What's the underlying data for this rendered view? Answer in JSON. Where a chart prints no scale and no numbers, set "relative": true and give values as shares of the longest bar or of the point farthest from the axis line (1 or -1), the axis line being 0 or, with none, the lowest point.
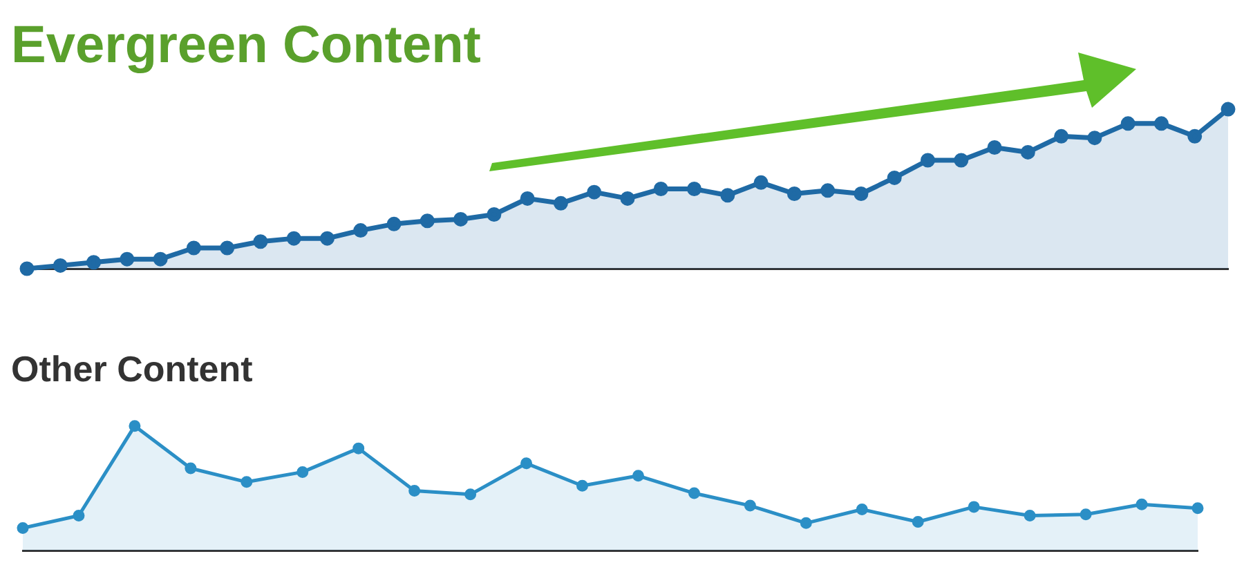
{
  "chart_data": [
    {
      "type": "area",
      "title": "Evergreen Content",
      "relative": true,
      "marker": "circle",
      "color": "#1f6aa5",
      "categories": [
        null,
        null,
        null,
        null,
        null,
        null,
        null,
        null,
        null,
        null,
        null,
        null,
        null,
        null,
        null,
        null,
        null,
        null,
        null,
        null,
        null,
        null,
        null,
        null,
        null,
        null,
        null,
        null,
        null,
        null,
        null,
        null,
        null,
        null,
        null,
        null,
        null
      ],
      "values": [
        0,
        0.02,
        0.04,
        0.06,
        0.06,
        0.13,
        0.13,
        0.17,
        0.19,
        0.19,
        0.24,
        0.28,
        0.3,
        0.31,
        0.34,
        0.44,
        0.41,
        0.48,
        0.44,
        0.5,
        0.5,
        0.46,
        0.54,
        0.47,
        0.49,
        0.47,
        0.57,
        0.68,
        0.68,
        0.76,
        0.73,
        0.83,
        0.82,
        0.91,
        0.91,
        0.83,
        1
      ]
    },
    {
      "type": "area",
      "title": "Other Content",
      "relative": true,
      "marker": "circle",
      "color": "#2b8fc6",
      "categories": [
        null,
        null,
        null,
        null,
        null,
        null,
        null,
        null,
        null,
        null,
        null,
        null,
        null,
        null,
        null,
        null,
        null,
        null,
        null,
        null,
        null,
        null
      ],
      "values": [
        0.18,
        0.28,
        1,
        0.66,
        0.55,
        0.63,
        0.82,
        0.48,
        0.45,
        0.7,
        0.52,
        0.6,
        0.46,
        0.36,
        0.22,
        0.33,
        0.23,
        0.35,
        0.28,
        0.29,
        0.37,
        0.34
      ]
    }
  ]
}
